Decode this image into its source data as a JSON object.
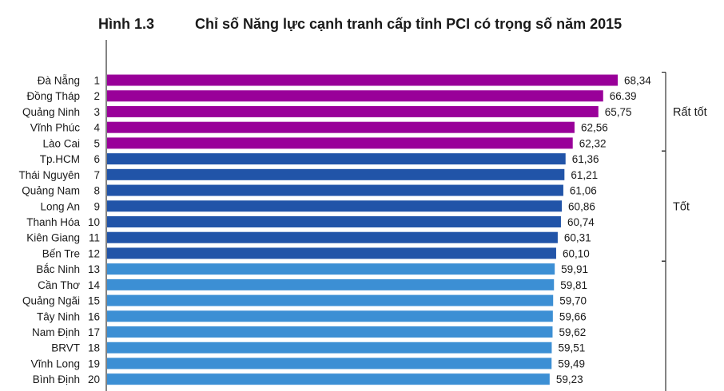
{
  "figure": {
    "number": "Hình 1.3",
    "title": "Chỉ số Năng lực cạnh tranh cấp tỉnh PCI có trọng số năm 2015"
  },
  "chart_data": {
    "type": "bar",
    "orientation": "horizontal",
    "title": "Chỉ số Năng lực cạnh tranh cấp tỉnh PCI có trọng số năm 2015",
    "xlabel": "",
    "ylabel": "",
    "xlim": [
      0,
      68.34
    ],
    "grid": false,
    "legend": "none",
    "categories": [
      "Đà Nẵng",
      "Đồng Tháp",
      "Quảng Ninh",
      "Vĩnh Phúc",
      "Lào Cai",
      "Tp.HCM",
      "Thái Nguyên",
      "Quảng Nam",
      "Long An",
      "Thanh Hóa",
      "Kiên Giang",
      "Bến Tre",
      "Bắc Ninh",
      "Cần Thơ",
      "Quảng Ngãi",
      "Tây Ninh",
      "Nam Định",
      "BRVT",
      "Vĩnh Long",
      "Bình Định"
    ],
    "ranks": [
      "1",
      "2",
      "3",
      "4",
      "5",
      "6",
      "7",
      "8",
      "9",
      "10",
      "11",
      "12",
      "13",
      "14",
      "15",
      "16",
      "17",
      "18",
      "19",
      "20"
    ],
    "values": [
      68.34,
      66.39,
      65.75,
      62.56,
      62.32,
      61.36,
      61.21,
      61.06,
      60.86,
      60.74,
      60.31,
      60.1,
      59.91,
      59.81,
      59.7,
      59.66,
      59.62,
      59.51,
      59.49,
      59.23
    ],
    "value_labels": [
      "68,34",
      "66.39",
      "65,75",
      "62,56",
      "62,32",
      "61,36",
      "61,21",
      "61,06",
      "60,86",
      "60,74",
      "60,31",
      "60,10",
      "59,91",
      "59,81",
      "59,70",
      "59,66",
      "59,62",
      "59,51",
      "59,49",
      "59,23"
    ],
    "groups": [
      {
        "label": "Rất tốt",
        "from": 0,
        "to": 4,
        "color": "#990099"
      },
      {
        "label": "Tốt",
        "from": 5,
        "to": 11,
        "color": "#2154a8"
      },
      {
        "label": "",
        "from": 12,
        "to": 19,
        "color": "#3c8fd4"
      }
    ]
  }
}
